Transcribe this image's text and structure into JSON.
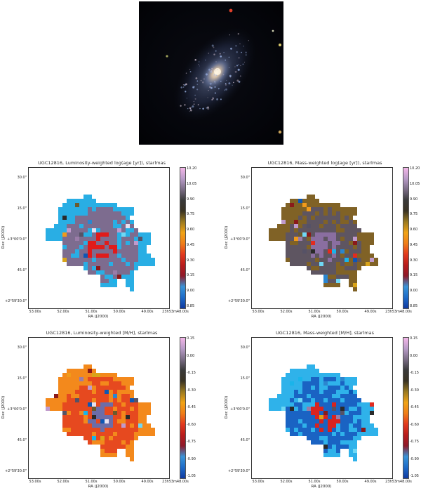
{
  "galaxy": {},
  "panels": [
    {
      "id": "lum-age",
      "title": "UGC12816, Luminosity-weighted log(age [yr]), starlmas",
      "xlabel": "RA (J2000)",
      "ylabel": "Dec (J2000)",
      "xticks": [
        "53.00s",
        "52.00s",
        "51.00s",
        "50.00s",
        "49.00s",
        "23h53m48.00s"
      ],
      "yticks": [
        "30.0\"",
        "15.0\"",
        "+3°00'0.0\"",
        "45.0\"",
        "+2°59'30.0\""
      ],
      "colorbar_ticks": [
        "10.20",
        "10.05",
        "9.90",
        "9.75",
        "9.60",
        "9.45",
        "9.30",
        "9.15",
        "9.00",
        "8.85"
      ],
      "fill": "#29aee4",
      "inner": "#7d6c8f",
      "core": "#e01b1b",
      "colors": [
        "#2b86cf",
        "#0d57b5",
        "#e8e0ef",
        "#c09acc",
        "#9a7ca8",
        "#565266",
        "#2a2a2a",
        "#6c5a2b",
        "#d9a41a",
        "#f19a1a",
        "#e22b1f",
        "#8a1a1a",
        "#1ab4ea",
        "#6fd8f5"
      ]
    },
    {
      "id": "mass-age",
      "title": "UGC12816, Mass-weighted log(age [yr]), starlmas",
      "xlabel": "RA (J2000)",
      "ylabel": "Dec (J2000)",
      "xticks": [
        "53.00s",
        "52.00s",
        "51.00s",
        "50.00s",
        "49.00s",
        "23h53m48.00s"
      ],
      "yticks": [
        "30.0\"",
        "15.0\"",
        "+3°00'0.0\"",
        "45.0\"",
        "+2°59'30.0\""
      ],
      "colorbar_ticks": [
        "10.20",
        "10.05",
        "9.90",
        "9.75",
        "9.60",
        "9.45",
        "9.30",
        "9.15",
        "9.00",
        "8.85"
      ],
      "fill": "#806226",
      "inner": "#5e5561",
      "core": "#8a6ea0",
      "colors": [
        "#2b86cf",
        "#0d57b5",
        "#e8e0ef",
        "#c09acc",
        "#9a7ca8",
        "#565266",
        "#2a2a2a",
        "#6c5a2b",
        "#d9a41a",
        "#f19a1a",
        "#e22b1f",
        "#8a1a1a",
        "#1ab4ea",
        "#6fd8f5"
      ]
    },
    {
      "id": "lum-met",
      "title": "UGC12816, Luminosity-weighted [M/H], starlmas",
      "xlabel": "RA (J2000)",
      "ylabel": "Dec (J2000)",
      "xticks": [
        "53.00s",
        "52.00s",
        "51.00s",
        "50.00s",
        "49.00s",
        "23h53m48.00s"
      ],
      "yticks": [
        "30.0\"",
        "15.0\"",
        "+3°00'0.0\"",
        "45.0\"",
        "+2°59'30.0\""
      ],
      "colorbar_ticks": [
        "0.15",
        "0.00",
        "-0.15",
        "-0.30",
        "-0.45",
        "-0.60",
        "-0.75",
        "-0.90",
        "-1.05"
      ],
      "fill": "#f3891c",
      "inner": "#e6491f",
      "core": "#6c6da8",
      "colors": [
        "#2b86cf",
        "#0d57b5",
        "#e8e0ef",
        "#c09acc",
        "#9a7ca8",
        "#565266",
        "#2a2a2a",
        "#6c5a2b",
        "#d9a41a",
        "#f19a1a",
        "#e22b1f",
        "#8a1a1a",
        "#1ab4ea",
        "#6fd8f5"
      ]
    },
    {
      "id": "mass-met",
      "title": "UGC12816, Mass-weighted [M/H], starlmas",
      "xlabel": "RA (J2000)",
      "ylabel": "Dec (J2000)",
      "xticks": [
        "53.00s",
        "52.00s",
        "51.00s",
        "50.00s",
        "49.00s",
        "23h53m48.00s"
      ],
      "yticks": [
        "30.0\"",
        "15.0\"",
        "+3°00'0.0\"",
        "45.0\"",
        "+2°59'30.0\""
      ],
      "colorbar_ticks": [
        "0.15",
        "0.00",
        "-0.15",
        "-0.30",
        "-0.45",
        "-0.60",
        "-0.75",
        "-0.90",
        "-1.05"
      ],
      "fill": "#2fb2ea",
      "inner": "#1a63c3",
      "core": "#d9231f",
      "colors": [
        "#2b86cf",
        "#0d57b5",
        "#e8e0ef",
        "#c09acc",
        "#9a7ca8",
        "#565266",
        "#2a2a2a",
        "#6c5a2b",
        "#d9a41a",
        "#f19a1a",
        "#e22b1f",
        "#8a1a1a",
        "#1ab4ea",
        "#6fd8f5"
      ]
    }
  ],
  "colormap": [
    "#f3b6e8",
    "#b99cc8",
    "#7b6d86",
    "#3a3a3a",
    "#3a3323",
    "#9b7a1f",
    "#f0a316",
    "#ef7d18",
    "#e23a1e",
    "#b81c1c",
    "#8e1a2a",
    "#3a94d8",
    "#1e6bc8",
    "#1039a0"
  ]
}
